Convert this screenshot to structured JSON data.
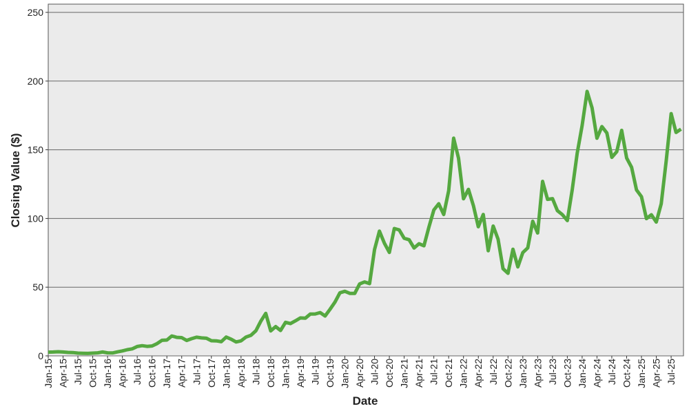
{
  "chart_data": {
    "type": "line",
    "y_label": "Closing Value ($)",
    "x_label": "Date",
    "color": "#55a840",
    "grid": true,
    "ylim": [
      0,
      256
    ],
    "yticks": [
      0,
      50,
      100,
      150,
      200,
      250
    ],
    "categories": [
      "Jan-15",
      null,
      null,
      "Apr-15",
      null,
      null,
      "Jul-15",
      null,
      null,
      "Oct-15",
      null,
      null,
      "Jan-16",
      null,
      null,
      "Apr-16",
      null,
      null,
      "Jul-16",
      null,
      null,
      "Oct-16",
      null,
      null,
      "Jan-17",
      null,
      null,
      "Apr-17",
      null,
      null,
      "Jul-17",
      null,
      null,
      "Oct-17",
      null,
      null,
      "Jan-18",
      null,
      null,
      "Apr-18",
      null,
      null,
      "Jul-18",
      null,
      null,
      "Oct-18",
      null,
      null,
      "Jan-19",
      null,
      null,
      "Apr-19",
      null,
      null,
      "Jul-19",
      null,
      null,
      "Oct-19",
      null,
      null,
      "Jan-20",
      null,
      null,
      "Apr-20",
      null,
      null,
      "Jul-20",
      null,
      null,
      "Oct-20",
      null,
      null,
      "Jan-21",
      null,
      null,
      "Apr-21",
      null,
      null,
      "Jul-21",
      null,
      null,
      "Oct-21",
      null,
      null,
      "Jan-22",
      null,
      null,
      "Apr-22",
      null,
      null,
      "Jul-22",
      null,
      null,
      "Oct-22",
      null,
      null,
      "Jan-23",
      null,
      null,
      "Apr-23",
      null,
      null,
      "Jul-23",
      null,
      null,
      "Oct-23",
      null,
      null,
      "Jan-24",
      null,
      null,
      "Apr-24",
      null,
      null,
      "Jul-24",
      null,
      null,
      "Oct-24",
      null,
      null,
      "Jan-25",
      null,
      null,
      "Apr-25",
      null,
      null,
      "Jul-25",
      null,
      null
    ],
    "values": [
      2.7,
      2.8,
      3.0,
      2.8,
      2.5,
      2.4,
      2.0,
      1.9,
      1.8,
      2.0,
      2.2,
      2.8,
      2.2,
      2.1,
      2.9,
      3.6,
      4.5,
      5.1,
      6.8,
      7.4,
      6.9,
      7.2,
      8.9,
      11.3,
      11.5,
      14.5,
      13.5,
      13.3,
      11.2,
      12.5,
      13.6,
      13.1,
      12.8,
      11.0,
      10.9,
      10.3,
      13.7,
      12.1,
      10.1,
      10.9,
      13.7,
      15.0,
      18.3,
      25.2,
      30.9,
      18.2,
      21.3,
      18.5,
      24.4,
      23.5,
      25.5,
      27.6,
      27.4,
      30.4,
      30.5,
      31.5,
      29.0,
      33.9,
      39.2,
      45.9,
      47.0,
      45.5,
      45.5,
      52.4,
      53.8,
      52.6,
      77.4,
      90.8,
      82.0,
      75.3,
      92.7,
      91.7,
      85.6,
      84.5,
      78.5,
      81.6,
      80.1,
      93.7,
      106.2,
      110.7,
      102.9,
      120.2,
      158.4,
      143.9,
      114.3,
      121.2,
      109.3,
      94.0,
      102.9,
      76.5,
      94.5,
      84.9,
      63.4,
      60.1,
      77.6,
      64.8,
      75.2,
      78.6,
      98.0,
      89.4,
      127.0,
      113.9,
      114.4,
      105.7,
      102.8,
      98.5,
      121.2,
      147.4,
      167.7,
      192.5,
      180.5,
      158.4,
      166.9,
      162.2,
      144.5,
      148.6,
      164.1,
      144.0,
      137.2,
      120.8,
      115.9,
      99.9,
      102.7,
      97.4,
      110.7,
      141.9,
      176.3,
      162.6,
      165.0
    ]
  }
}
